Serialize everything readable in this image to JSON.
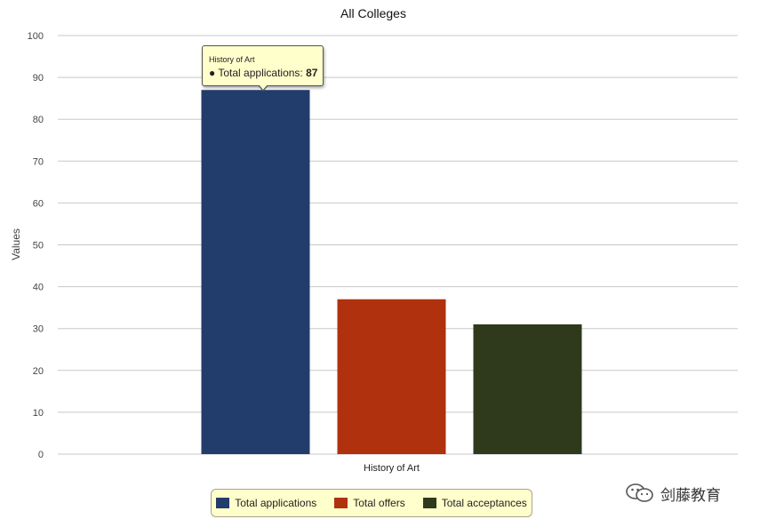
{
  "chart_data": {
    "type": "bar",
    "title": "All Colleges",
    "xlabel": "",
    "ylabel": "Values",
    "ylim": [
      0,
      100
    ],
    "yticks": [
      0,
      10,
      20,
      30,
      40,
      50,
      60,
      70,
      80,
      90,
      100
    ],
    "categories": [
      "History of Art"
    ],
    "series": [
      {
        "name": "Total applications",
        "values": [
          87
        ],
        "color": "#223c6c"
      },
      {
        "name": "Total offers",
        "values": [
          37
        ],
        "color": "#b0310d"
      },
      {
        "name": "Total acceptances",
        "values": [
          31
        ],
        "color": "#2e3a1b"
      }
    ],
    "grid": true,
    "legend_position": "bottom"
  },
  "tooltip": {
    "category": "History of Art",
    "series_label": "Total applications:",
    "value": "87"
  },
  "watermark": {
    "text": "剑藤教育",
    "icon": "wechat-icon"
  }
}
